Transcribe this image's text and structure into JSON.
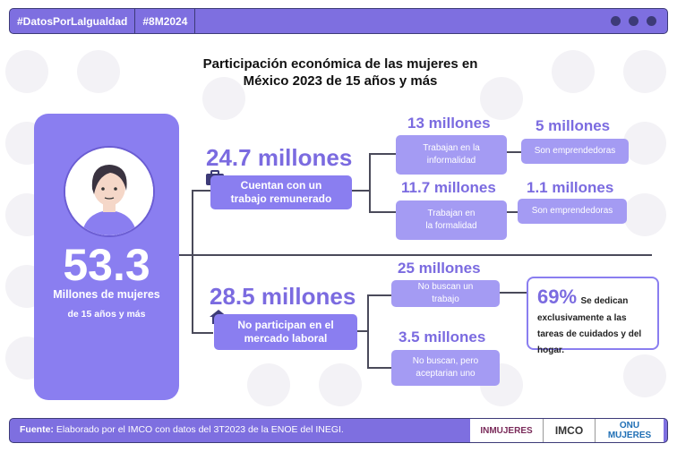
{
  "header": {
    "tag1": "#DatosPorLaIgualdad",
    "tag2": "#8M2024"
  },
  "title": {
    "line1": "Participación económica de las mujeres en",
    "line2": "México 2023 de 15 años y más"
  },
  "total": {
    "value": "53.3",
    "label": "Millones de mujeres",
    "sublabel": "de 15 años y más"
  },
  "employed": {
    "value": "24.7 millones",
    "label_line1": "Cuentan con un",
    "label_line2": "trabajo remunerado",
    "informal": {
      "value": "13 millones",
      "label_line1": "Trabajan  en la",
      "label_line2": "informalidad",
      "entre_value": "5 millones",
      "entre_label": "Son emprendedoras"
    },
    "formal": {
      "value": "11.7 millones",
      "label_line1": "Trabajan  en",
      "label_line2": "la formalidad",
      "entre_value": "1.1 millones",
      "entre_label": "Son emprendedoras"
    }
  },
  "not_participating": {
    "value": "28.5 millones",
    "label_line1": "No participan en el",
    "label_line2": "mercado laboral",
    "no_search": {
      "value": "25 millones",
      "label_line1": "No buscan  un",
      "label_line2": "trabajo"
    },
    "would_accept": {
      "value": "3.5 millones",
      "label_line1": "No buscan,  pero",
      "label_line2": "aceptarian  uno"
    }
  },
  "callout": {
    "percent": "69%",
    "text": "Se dedican exclusivamente a las tareas de cuidados y del hogar."
  },
  "footer": {
    "source_label": "Fuente:",
    "source_text": " Elaborado por el IMCO con datos del 3T2023 de la ENOE del INEGI.",
    "logo1": "INMUJERES",
    "logo2": "IMCO",
    "logo3_line1": "ONU",
    "logo3_line2": "MUJERES"
  },
  "colors": {
    "accent": "#8a7ef0",
    "dark": "#3d3b78",
    "number": "#7b6be0"
  }
}
